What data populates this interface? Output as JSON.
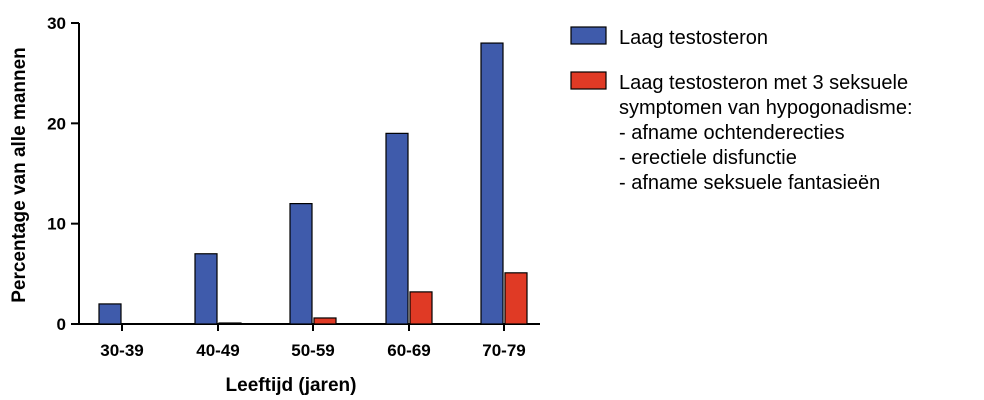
{
  "chart_data": {
    "type": "bar",
    "xlabel": "Leeftijd (jaren)",
    "ylabel": "Percentage van alle mannen",
    "categories": [
      "30-39",
      "40-49",
      "50-59",
      "60-69",
      "70-79"
    ],
    "ylim": [
      0,
      30
    ],
    "yticks": [
      0,
      10,
      20,
      30
    ],
    "series": [
      {
        "name": "Laag testosteron",
        "color": "#3f5bab",
        "values": [
          2,
          7,
          12,
          19,
          28
        ]
      },
      {
        "name": "Laag testosteron met 3 seksuele symptomen van hypogonadisme:",
        "color": "#e03a25",
        "values": [
          0,
          0.1,
          0.6,
          3.2,
          5.1
        ]
      }
    ],
    "legend": {
      "placement": "right",
      "entries": [
        {
          "lines": [
            "Laag testosteron"
          ]
        },
        {
          "lines": [
            "Laag testosteron met 3 seksuele",
            "symptomen van hypogonadisme:",
            "- afname ochtenderecties",
            "- erectiele disfunctie",
            "- afname seksuele fantasieën"
          ]
        }
      ]
    }
  }
}
